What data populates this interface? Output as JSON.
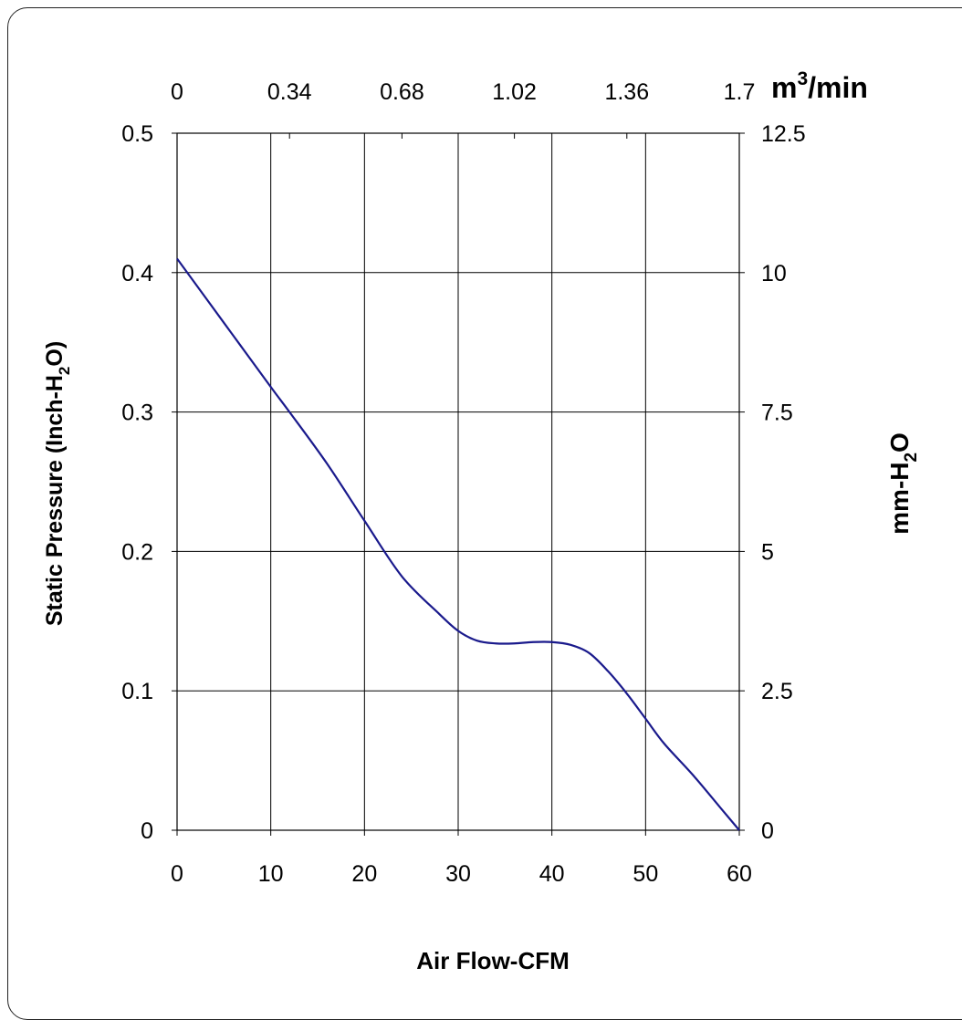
{
  "chart_data": {
    "type": "line",
    "xlabel": "Air Flow-CFM",
    "ylabel": {
      "main": "Static Pressure (Inch-H",
      "sub": "2",
      "tail": "O)"
    },
    "y2label": {
      "main": "mm-H",
      "sub": "2",
      "tail": "O"
    },
    "top_unit": {
      "main": "m",
      "sup": "3",
      "tail": "/min"
    },
    "xlim": [
      0,
      60
    ],
    "ylim": [
      0,
      0.5
    ],
    "x_ticks": [
      "0",
      "10",
      "20",
      "30",
      "40",
      "50",
      "60"
    ],
    "y_ticks": [
      "0",
      "0.1",
      "0.2",
      "0.3",
      "0.4",
      "0.5"
    ],
    "y2_ticks": [
      "0",
      "2.5",
      "5",
      "7.5",
      "10",
      "12.5"
    ],
    "top_ticks": [
      "0",
      "0.34",
      "0.68",
      "1.02",
      "1.36",
      "1.7"
    ],
    "grid": true,
    "line_color": "#1a1a8c",
    "series": [
      {
        "x": [
          0,
          5,
          10,
          12,
          16,
          20,
          24,
          28,
          30,
          32,
          34,
          36,
          38,
          40,
          42,
          44,
          46,
          48,
          50,
          52,
          55,
          58,
          60
        ],
        "y": [
          0.41,
          0.364,
          0.318,
          0.3,
          0.263,
          0.222,
          0.182,
          0.155,
          0.143,
          0.136,
          0.134,
          0.134,
          0.135,
          0.135,
          0.133,
          0.127,
          0.114,
          0.098,
          0.08,
          0.062,
          0.04,
          0.016,
          0.0
        ]
      }
    ]
  }
}
